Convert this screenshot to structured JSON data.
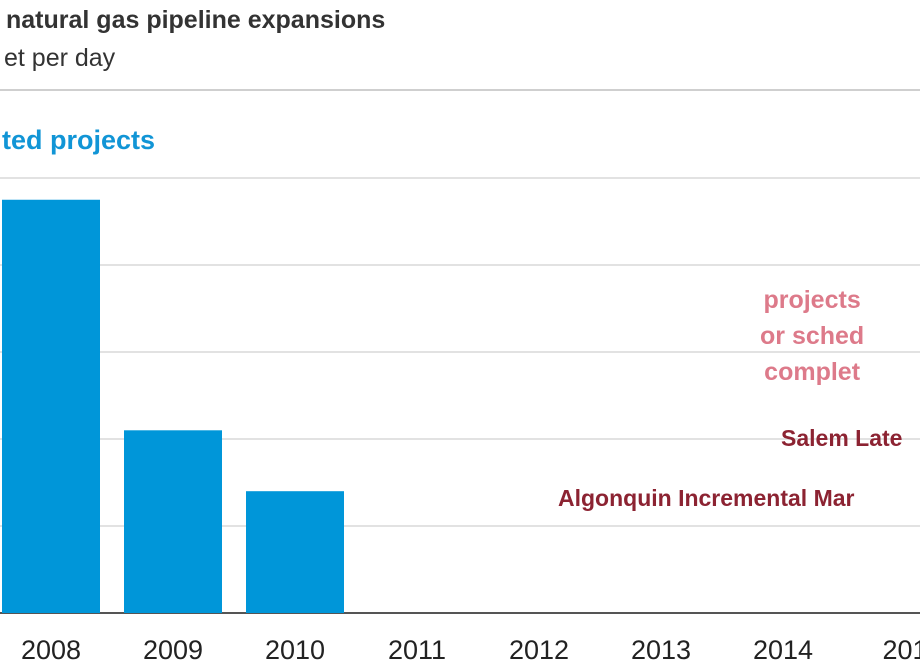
{
  "header": {
    "title": "natural gas pipeline expansions",
    "subtitle": "et per day"
  },
  "labels": {
    "completed": "ted projects",
    "planned_lines": [
      "projects",
      "or sched",
      "complet"
    ],
    "project_1": "Salem Late",
    "project_2": "Algonquin Incremental Mar"
  },
  "colors": {
    "bar": "#0096d9",
    "completed_label": "#1195d6",
    "planned_label": "#dd7a8a",
    "project_label": "#8c2332",
    "grid": "#d9d9d9"
  },
  "chart_data": {
    "type": "bar",
    "categories": [
      "2008",
      "2009",
      "2010",
      "2011",
      "2012",
      "2013",
      "2014",
      "201"
    ],
    "values": [
      0.95,
      0.42,
      0.28,
      0,
      0,
      0,
      0,
      0
    ],
    "ylim": [
      0,
      1.0
    ],
    "grid": true,
    "series_label": "ted projects",
    "annotations": [
      "projects or sched complet",
      "Salem Late",
      "Algonquin Incremental Mar"
    ]
  }
}
